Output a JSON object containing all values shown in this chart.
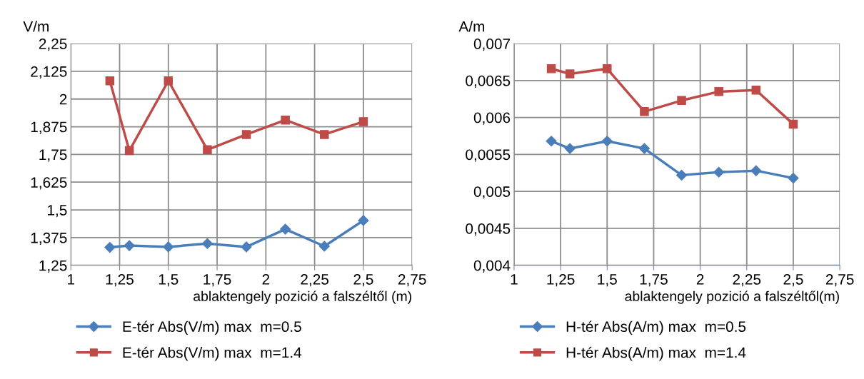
{
  "chart_data": [
    {
      "type": "line",
      "ylabel": "V/m",
      "xlabel": "ablaktengely pozició a falszéltől (m)",
      "x": [
        1.2,
        1.3,
        1.5,
        1.7,
        1.9,
        2.1,
        2.3,
        2.5
      ],
      "series": [
        {
          "name": "E-tér Abs(V/m) max  m=0.5",
          "color": "#4a7ebb",
          "marker": "diamond",
          "values": [
            1.331,
            1.339,
            1.333,
            1.348,
            1.333,
            1.413,
            1.336,
            1.452
          ]
        },
        {
          "name": "E-tér Abs(V/m) max  m=1.4",
          "color": "#be4b48",
          "marker": "square",
          "values": [
            2.082,
            1.767,
            2.082,
            1.771,
            1.84,
            1.905,
            1.84,
            1.898
          ]
        }
      ],
      "xlim": [
        1,
        2.75
      ],
      "xticks": [
        1,
        {
          "value": 1.25,
          "label": "1,25"
        },
        {
          "value": 1.5,
          "label": "1,5"
        },
        {
          "value": 1.75,
          "label": "1,75"
        },
        2,
        {
          "value": 2.25,
          "label": "2,25"
        },
        {
          "value": 2.5,
          "label": "2,5"
        },
        {
          "value": 2.75,
          "label": "2,75"
        }
      ],
      "ylim": [
        1.25,
        2.25
      ],
      "yticks": [
        {
          "value": 1.25,
          "label": "1,25"
        },
        {
          "value": 1.375,
          "label": "1,375"
        },
        {
          "value": 1.5,
          "label": "1,5"
        },
        {
          "value": 1.625,
          "label": "1,625"
        },
        {
          "value": 1.75,
          "label": "1,75"
        },
        {
          "value": 1.875,
          "label": "1,875"
        },
        2,
        {
          "value": 2.125,
          "label": "2,125"
        },
        {
          "value": 2.25,
          "label": "2,25"
        }
      ],
      "grid": true,
      "legend": "bottom"
    },
    {
      "type": "line",
      "ylabel": "A/m",
      "xlabel": "ablaktengely pozició a falszéltől(m)",
      "x": [
        1.2,
        1.3,
        1.5,
        1.7,
        1.9,
        2.1,
        2.3,
        2.5
      ],
      "series": [
        {
          "name": "H-tér Abs(A/m) max  m=0.5",
          "color": "#4a7ebb",
          "marker": "diamond",
          "values": [
            0.00568,
            0.00558,
            0.00568,
            0.00558,
            0.00522,
            0.00526,
            0.00528,
            0.00518
          ]
        },
        {
          "name": "H-tér Abs(A/m) max  m=1.4",
          "color": "#be4b48",
          "marker": "square",
          "values": [
            0.00666,
            0.00659,
            0.00666,
            0.00608,
            0.00623,
            0.00635,
            0.00637,
            0.00591
          ]
        }
      ],
      "xlim": [
        1,
        2.75
      ],
      "xticks": [
        1,
        {
          "value": 1.25,
          "label": "1,25"
        },
        {
          "value": 1.5,
          "label": "1,5"
        },
        {
          "value": 1.75,
          "label": "1,75"
        },
        2,
        {
          "value": 2.25,
          "label": "2,25"
        },
        {
          "value": 2.5,
          "label": "2,5"
        },
        {
          "value": 2.75,
          "label": "2,75"
        }
      ],
      "ylim": [
        0.004,
        0.007
      ],
      "yticks": [
        {
          "value": 0.004,
          "label": "0,004"
        },
        {
          "value": 0.0045,
          "label": "0,0045"
        },
        {
          "value": 0.005,
          "label": "0,005"
        },
        {
          "value": 0.0055,
          "label": "0,0055"
        },
        {
          "value": 0.006,
          "label": "0,006"
        },
        {
          "value": 0.0065,
          "label": "0,0065"
        },
        {
          "value": 0.007,
          "label": "0,007"
        }
      ],
      "grid": true,
      "legend": "bottom"
    }
  ]
}
